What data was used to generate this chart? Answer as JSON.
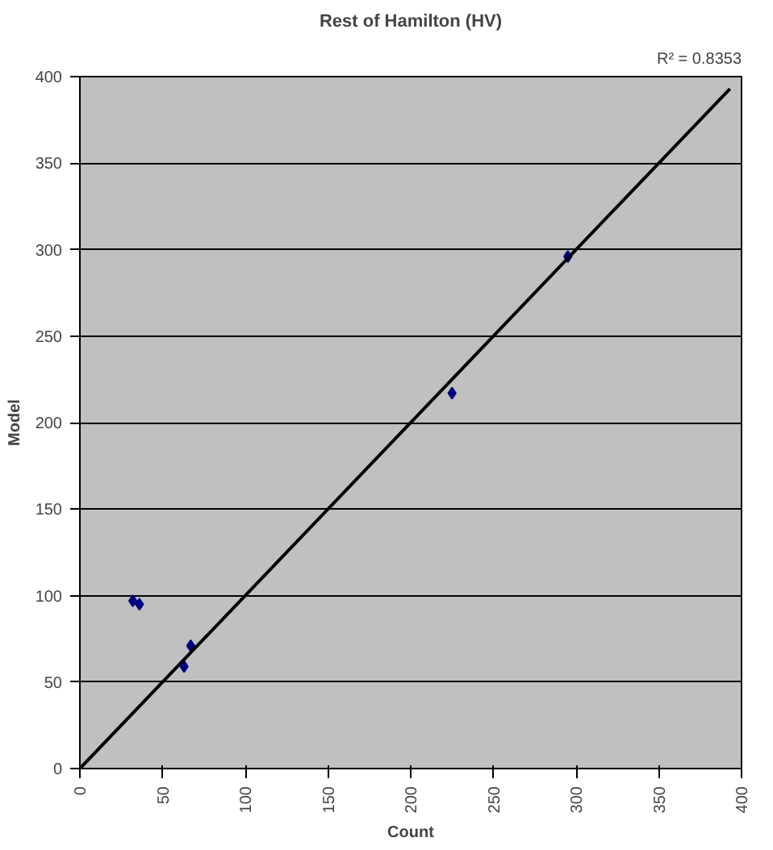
{
  "chart_data": {
    "type": "scatter",
    "title": "Rest of Hamilton (HV)",
    "xlabel": "Count",
    "ylabel": "Model",
    "x": [
      32,
      36,
      63,
      67,
      225,
      295
    ],
    "series": [
      {
        "color": "#000080",
        "values": [
          97,
          95,
          59,
          71,
          217,
          296
        ],
        "marker": "diamond"
      },
      {
        "type": "line",
        "color": "#000000",
        "x": [
          0,
          393
        ],
        "values": [
          0,
          393
        ]
      }
    ],
    "annotations": [
      "R² = 0.8353"
    ],
    "xlim": [
      0,
      400
    ],
    "ylim": [
      0,
      400
    ],
    "xticks": [
      0,
      50,
      100,
      150,
      200,
      250,
      300,
      350,
      400
    ],
    "yticks": [
      0,
      50,
      100,
      150,
      200,
      250,
      300,
      350,
      400
    ],
    "grid": "y"
  }
}
